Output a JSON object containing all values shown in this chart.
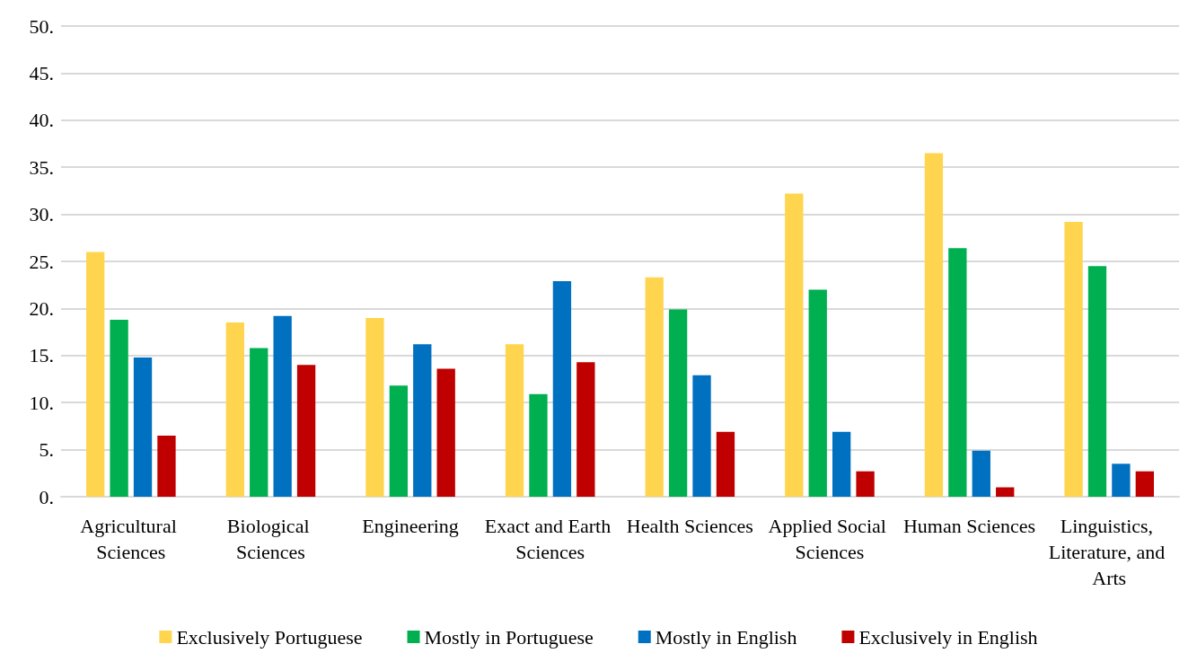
{
  "chart_data": {
    "type": "bar",
    "categories": [
      "Agricultural Sciences",
      "Biological Sciences",
      "Engineering",
      "Exact and Earth Sciences",
      "Health Sciences",
      "Applied Social Sciences",
      "Human Sciences",
      "Linguistics, Literature, and Arts"
    ],
    "series": [
      {
        "name": "Exclusively Portuguese",
        "color": "#ffd54f",
        "values": [
          26.0,
          18.5,
          19.0,
          16.2,
          23.3,
          32.2,
          36.5,
          29.2
        ]
      },
      {
        "name": "Mostly in Portuguese",
        "color": "#00b050",
        "values": [
          18.8,
          15.8,
          11.8,
          10.9,
          19.9,
          22.0,
          26.4,
          24.5
        ]
      },
      {
        "name": "Mostly in English",
        "color": "#0070c0",
        "values": [
          14.8,
          19.2,
          16.2,
          22.9,
          12.9,
          6.9,
          4.9,
          3.5
        ]
      },
      {
        "name": "Exclusively in English",
        "color": "#c00000",
        "values": [
          6.5,
          14.0,
          13.6,
          14.3,
          6.9,
          2.7,
          1.0,
          2.7
        ]
      }
    ],
    "ylim": [
      0,
      50
    ],
    "yticks": [
      {
        "value": 0,
        "label": "0."
      },
      {
        "value": 5,
        "label": "5."
      },
      {
        "value": 10,
        "label": "10."
      },
      {
        "value": 15,
        "label": "15."
      },
      {
        "value": 20,
        "label": "20."
      },
      {
        "value": 25,
        "label": "25."
      },
      {
        "value": 30,
        "label": "30."
      },
      {
        "value": 35,
        "label": "35."
      },
      {
        "value": 40,
        "label": "40."
      },
      {
        "value": 45,
        "label": "45."
      },
      {
        "value": 50,
        "label": "50."
      }
    ],
    "grid": "y",
    "legend": "bottom"
  }
}
